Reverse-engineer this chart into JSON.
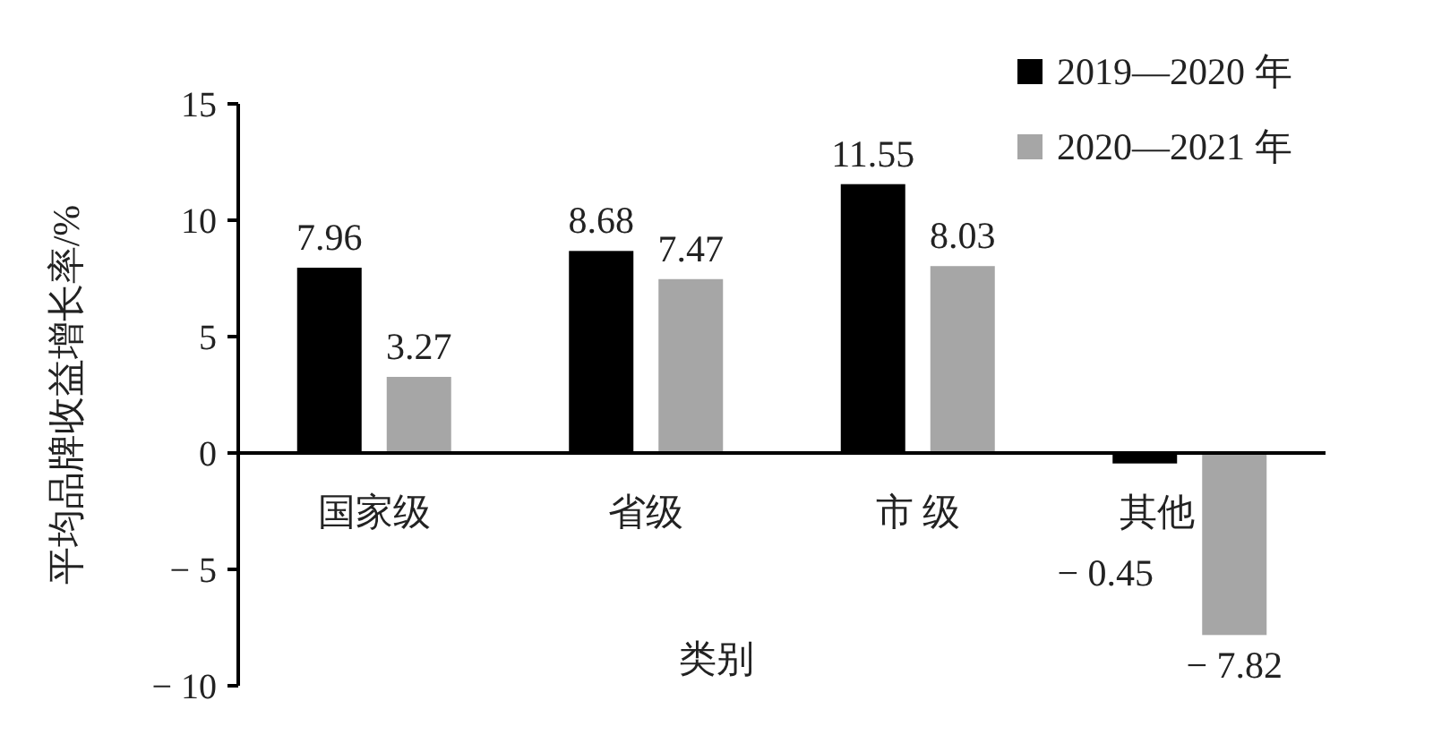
{
  "chart_data": {
    "type": "bar",
    "xlabel": "类别",
    "ylabel": "平均品牌收益增长率/%",
    "categories": [
      "国家级",
      "省级",
      "市 级",
      "其他"
    ],
    "series": [
      {
        "name": "2019—2020 年",
        "color": "#000000",
        "values": [
          7.96,
          8.68,
          11.55,
          -0.45
        ],
        "value_labels": [
          "7.96",
          "8.68",
          "11.55",
          "− 0.45"
        ]
      },
      {
        "name": "2020—2021 年",
        "color": "#a6a6a6",
        "values": [
          3.27,
          7.47,
          8.03,
          -7.82
        ],
        "value_labels": [
          "3.27",
          "7.47",
          "8.03",
          "− 7.82"
        ]
      }
    ],
    "ylim": [
      -10,
      15
    ],
    "yticks": [
      {
        "value": -10,
        "label": "− 10"
      },
      {
        "value": -5,
        "label": "− 5"
      },
      0,
      5,
      10,
      15
    ],
    "grid": false,
    "legend": "top right"
  }
}
